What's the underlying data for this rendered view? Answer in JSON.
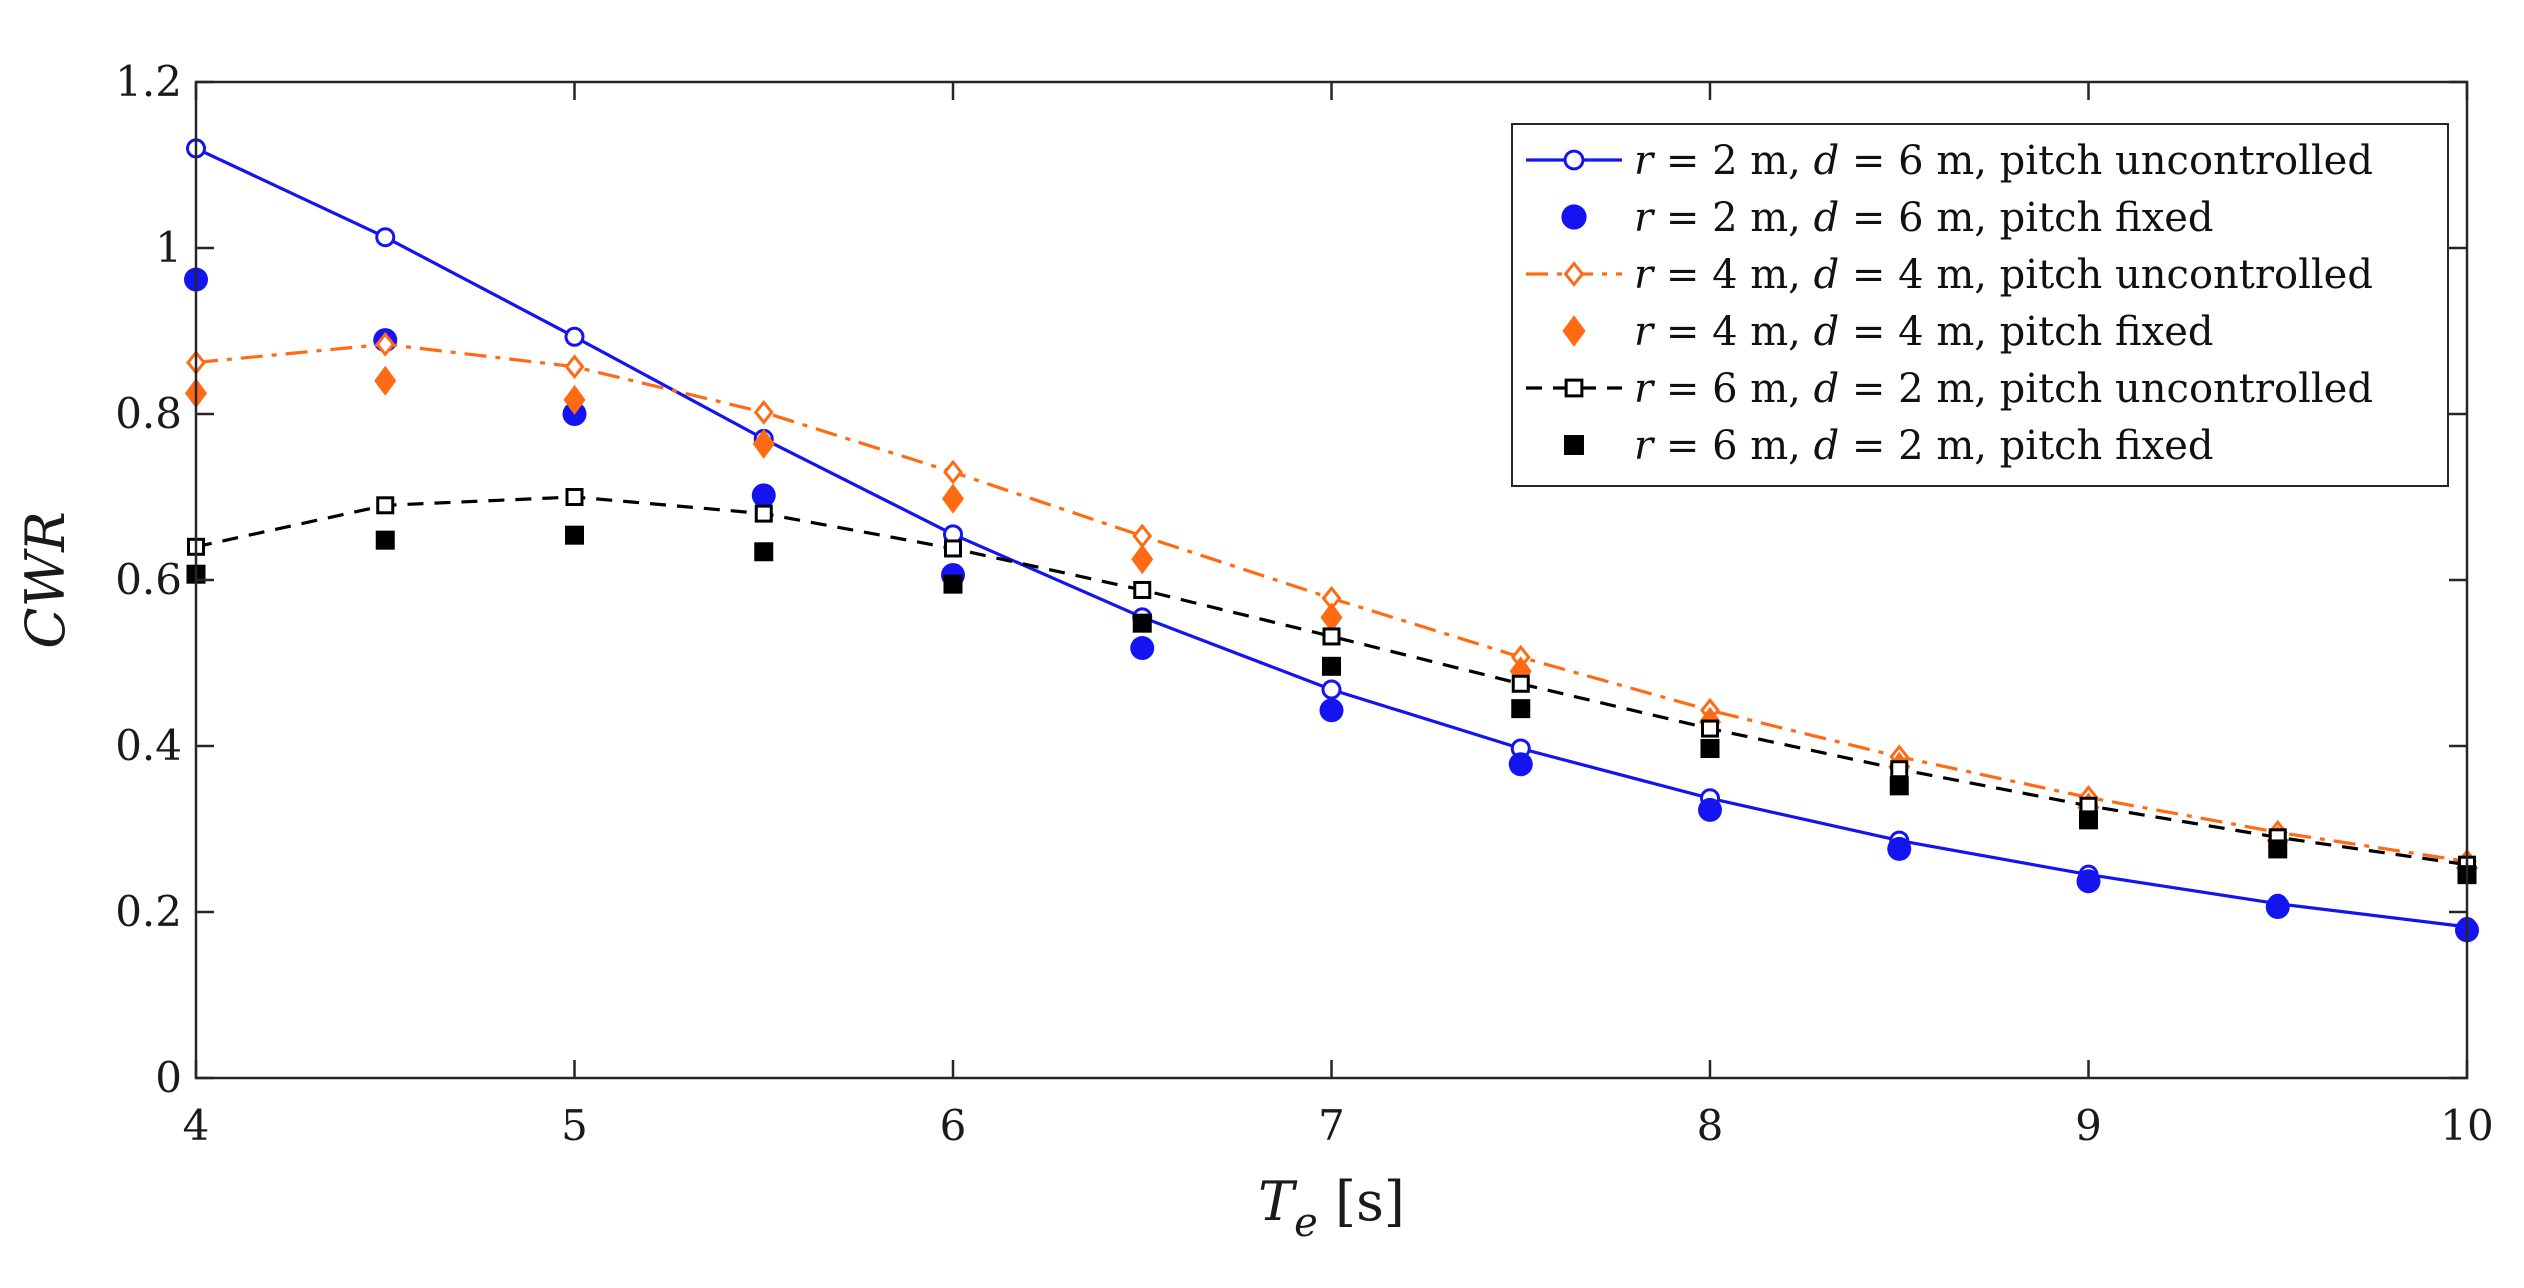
{
  "chart_data": {
    "type": "line",
    "title": "",
    "xlabel": {
      "symbol": "T",
      "subscript": "e",
      "unit": "[s]"
    },
    "ylabel": "CWR",
    "xlim": [
      4,
      10
    ],
    "ylim": [
      0,
      1.2
    ],
    "xticks": [
      4,
      5,
      6,
      7,
      8,
      9,
      10
    ],
    "xtick_labels": [
      "4",
      "5",
      "6",
      "7",
      "8",
      "9",
      "10"
    ],
    "yticks": [
      0,
      0.2,
      0.4,
      0.6,
      0.8,
      1.0,
      1.2
    ],
    "ytick_labels": [
      "0",
      "0.2",
      "0.4",
      "0.6",
      "0.8",
      "1",
      "1.2"
    ],
    "grid": false,
    "legend_position": "top-right",
    "x": [
      4,
      4.5,
      5,
      5.5,
      6,
      6.5,
      7,
      7.5,
      8,
      8.5,
      9,
      9.5,
      10
    ],
    "series": [
      {
        "name": "r = 2 m, d = 6 m, pitch uncontrolled",
        "legend": {
          "r": "2",
          "d": "6",
          "suffix": "pitch uncontrolled"
        },
        "color": "#1414f0",
        "line": "solid",
        "marker": "circle-open",
        "values": [
          1.12,
          1.013,
          0.893,
          0.77,
          0.655,
          0.555,
          0.468,
          0.397,
          0.337,
          0.286,
          0.245,
          0.21,
          0.182
        ]
      },
      {
        "name": "r = 2 m, d = 6 m, pitch fixed",
        "legend": {
          "r": "2",
          "d": "6",
          "suffix": "pitch fixed"
        },
        "color": "#1414f0",
        "line": "none",
        "marker": "circle-filled",
        "values": [
          0.962,
          0.889,
          0.8,
          0.702,
          0.606,
          0.518,
          0.443,
          0.378,
          0.323,
          0.276,
          0.237,
          0.206,
          0.178
        ]
      },
      {
        "name": "r = 4 m, d = 4 m, pitch uncontrolled",
        "legend": {
          "r": "4",
          "d": "4",
          "suffix": "pitch uncontrolled"
        },
        "color": "#ff6a13",
        "line": "dashdot",
        "marker": "diamond-open",
        "values": [
          0.862,
          0.884,
          0.857,
          0.802,
          0.73,
          0.653,
          0.578,
          0.507,
          0.443,
          0.387,
          0.338,
          0.296,
          0.261
        ]
      },
      {
        "name": "r = 4 m, d = 4 m, pitch fixed",
        "legend": {
          "r": "4",
          "d": "4",
          "suffix": "pitch fixed"
        },
        "color": "#ff6a13",
        "line": "none",
        "marker": "diamond-filled",
        "values": [
          0.825,
          0.84,
          0.817,
          0.764,
          0.698,
          0.625,
          0.555,
          0.49,
          0.429,
          0.375,
          0.326,
          0.286,
          0.253
        ]
      },
      {
        "name": "r = 6 m, d = 2 m, pitch uncontrolled",
        "legend": {
          "r": "6",
          "d": "2",
          "suffix": "pitch uncontrolled"
        },
        "color": "#000000",
        "line": "dashed",
        "marker": "square-open",
        "values": [
          0.64,
          0.69,
          0.7,
          0.68,
          0.638,
          0.588,
          0.532,
          0.475,
          0.421,
          0.372,
          0.328,
          0.29,
          0.257
        ]
      },
      {
        "name": "r = 6 m, d = 2 m, pitch fixed",
        "legend": {
          "r": "6",
          "d": "2",
          "suffix": "pitch fixed"
        },
        "color": "#000000",
        "line": "none",
        "marker": "square-filled",
        "values": [
          0.607,
          0.648,
          0.654,
          0.634,
          0.595,
          0.548,
          0.496,
          0.445,
          0.397,
          0.352,
          0.311,
          0.276,
          0.245
        ]
      }
    ]
  }
}
